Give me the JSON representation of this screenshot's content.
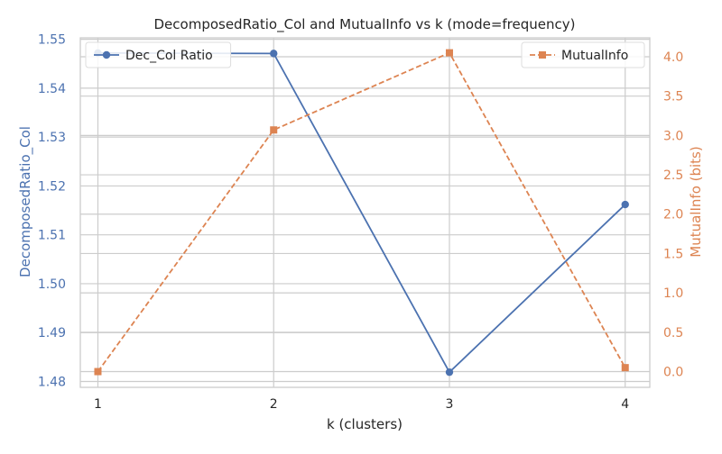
{
  "chart_data": {
    "type": "line",
    "title": "DecomposedRatio_Col and MutualInfo vs k (mode=frequency)",
    "xlabel": "k (clusters)",
    "x": [
      1,
      2,
      3,
      4
    ],
    "x_ticks": [
      "1",
      "2",
      "3",
      "4"
    ],
    "grid": true,
    "left_axis": {
      "label": "DecomposedRatio_Col",
      "color": "#4c72b0",
      "ylim": [
        1.4788,
        1.5503
      ],
      "ticks": [
        "1.48",
        "1.49",
        "1.50",
        "1.51",
        "1.52",
        "1.53",
        "1.54",
        "1.55"
      ]
    },
    "right_axis": {
      "label": "MutualInfo (bits)",
      "color": "#dd8452",
      "ylim": [
        -0.2,
        4.24
      ],
      "ticks": [
        "0.0",
        "0.5",
        "1.0",
        "1.5",
        "2.0",
        "2.5",
        "3.0",
        "3.5",
        "4.0"
      ]
    },
    "series": [
      {
        "name": "Dec_Col Ratio",
        "axis": "left",
        "color": "#4c72b0",
        "style": "solid",
        "marker": "circle",
        "values": [
          1.5472,
          1.5471,
          1.4819,
          1.5162
        ]
      },
      {
        "name": "MutualInfo",
        "axis": "right",
        "color": "#dd8452",
        "style": "dashed",
        "marker": "square",
        "values": [
          0.0,
          3.07,
          4.05,
          0.05
        ]
      }
    ],
    "legends": [
      {
        "placement": "top-left",
        "series": "Dec_Col Ratio"
      },
      {
        "placement": "top-right",
        "series": "MutualInfo"
      }
    ]
  }
}
